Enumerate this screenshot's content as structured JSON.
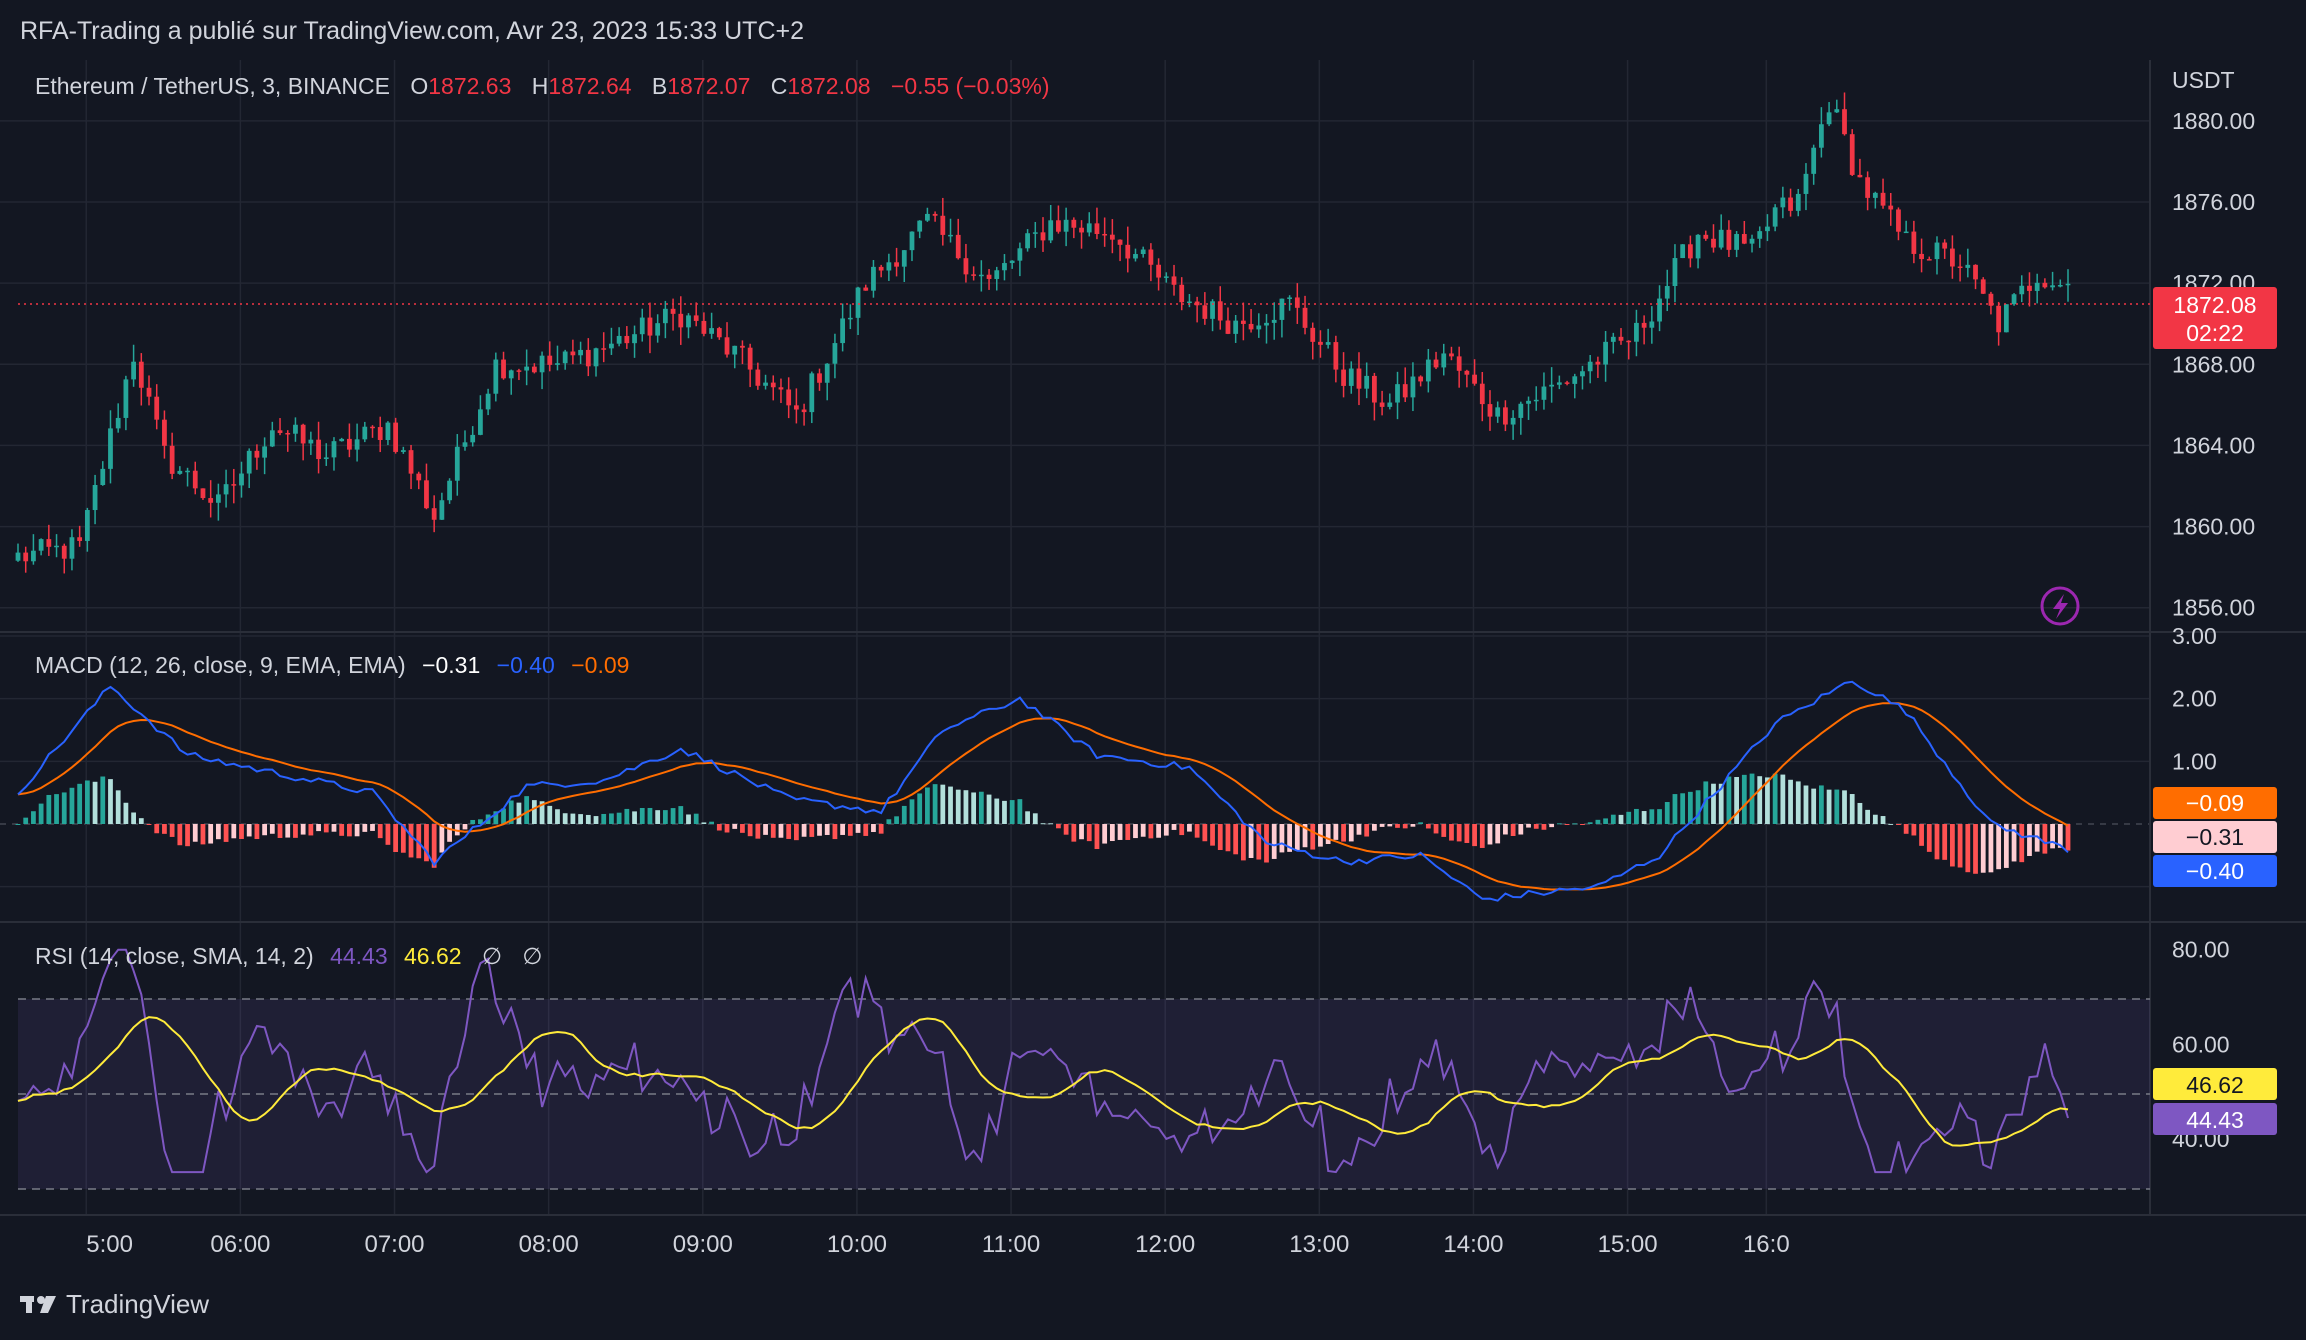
{
  "header": {
    "publisher": "RFA-Trading a publié sur TradingView.com, Avr 23, 2023 15:33 UTC+2"
  },
  "footer": {
    "brand": "TradingView"
  },
  "colors": {
    "bg": "#131722",
    "up": "#26a69a",
    "down": "#f23645",
    "grid": "#232733",
    "text": "#d1d4dc"
  },
  "price_pane": {
    "symbol": "Ethereum / TetherUS, 3, BINANCE",
    "ohlc": {
      "o_label": "O",
      "o": "1872.63",
      "h_label": "H",
      "h": "1872.64",
      "b_label": "B",
      "b": "1872.07",
      "c_label": "C",
      "c": "1872.08",
      "change": "−0.55 (−0.03%)"
    },
    "currency": "USDT",
    "last_price": "1872.08",
    "countdown": "02:22",
    "y_ticks": [
      "1880.00",
      "1876.00",
      "1872.00",
      "1868.00",
      "1864.00",
      "1860.00",
      "1856.00"
    ]
  },
  "macd_pane": {
    "label": "MACD (12, 26, close, 9, EMA, EMA)",
    "v_hist": "−0.31",
    "v_macd": "−0.40",
    "v_signal": "−0.09",
    "y_ticks": [
      "3.00",
      "2.00",
      "1.00"
    ],
    "badge_signal": "−0.09",
    "badge_hist": "−0.31",
    "badge_macd": "−0.40"
  },
  "rsi_pane": {
    "label": "RSI (14, close, SMA, 14, 2)",
    "v_rsi": "44.43",
    "v_sma": "46.62",
    "v_extra1": "∅",
    "v_extra2": "∅",
    "y_ticks": [
      "80.00",
      "60.00",
      "40.00"
    ],
    "badge_sma": "46.62",
    "badge_rsi": "44.43"
  },
  "x_ticks": [
    "5:00",
    "06:00",
    "07:00",
    "08:00",
    "09:00",
    "10:00",
    "11:00",
    "12:00",
    "13:00",
    "14:00",
    "15:00",
    "16:0"
  ],
  "chart_data": {
    "type": "candlestick",
    "interval": "3m",
    "y_range": [
      1855,
      1883
    ],
    "price_anchors": [
      [
        0,
        1858.5
      ],
      [
        8,
        1859
      ],
      [
        15,
        1868.5
      ],
      [
        19,
        1863.5
      ],
      [
        26,
        1861
      ],
      [
        33,
        1865
      ],
      [
        40,
        1863.5
      ],
      [
        48,
        1865
      ],
      [
        54,
        1860.5
      ],
      [
        62,
        1868
      ],
      [
        70,
        1868
      ],
      [
        77,
        1869
      ],
      [
        86,
        1870.5
      ],
      [
        93,
        1868.5
      ],
      [
        101,
        1865.5
      ],
      [
        110,
        1872
      ],
      [
        118,
        1875
      ],
      [
        126,
        1872
      ],
      [
        134,
        1875
      ],
      [
        142,
        1874.5
      ],
      [
        150,
        1871.5
      ],
      [
        158,
        1870
      ],
      [
        165,
        1871
      ],
      [
        172,
        1867.5
      ],
      [
        178,
        1866
      ],
      [
        185,
        1868.5
      ],
      [
        192,
        1865.5
      ],
      [
        200,
        1867
      ],
      [
        210,
        1869.5
      ],
      [
        218,
        1874.5
      ],
      [
        225,
        1873.5
      ],
      [
        228,
        1875.5
      ],
      [
        231,
        1876
      ],
      [
        235,
        1881
      ],
      [
        239,
        1877
      ],
      [
        245,
        1874
      ],
      [
        252,
        1873
      ],
      [
        257,
        1870
      ],
      [
        262,
        1872.5
      ],
      [
        266,
        1872
      ]
    ],
    "macd_range": [
      -1.5,
      3
    ],
    "macd_anchors": [
      [
        0,
        0.5
      ],
      [
        12,
        2.2
      ],
      [
        22,
        1.1
      ],
      [
        34,
        0.8
      ],
      [
        46,
        0.5
      ],
      [
        54,
        -0.6
      ],
      [
        66,
        0.6
      ],
      [
        76,
        0.7
      ],
      [
        86,
        1.2
      ],
      [
        100,
        0.4
      ],
      [
        112,
        0.2
      ],
      [
        120,
        1.5
      ],
      [
        130,
        2.0
      ],
      [
        140,
        1.1
      ],
      [
        152,
        0.9
      ],
      [
        162,
        -0.3
      ],
      [
        172,
        -0.6
      ],
      [
        182,
        -0.5
      ],
      [
        190,
        -1.2
      ],
      [
        205,
        -1.0
      ],
      [
        213,
        -0.5
      ],
      [
        228,
        1.6
      ],
      [
        238,
        2.3
      ],
      [
        245,
        1.8
      ],
      [
        256,
        0.0
      ],
      [
        266,
        -0.4
      ]
    ],
    "macd_hist": {
      "last": -0.31,
      "signal_last": -0.09,
      "macd_last": -0.4
    },
    "rsi_range": [
      25,
      85
    ],
    "rsi_bands": [
      70,
      50,
      30
    ],
    "rsi_last": 44.43,
    "rsi_sma_last": 46.62
  }
}
